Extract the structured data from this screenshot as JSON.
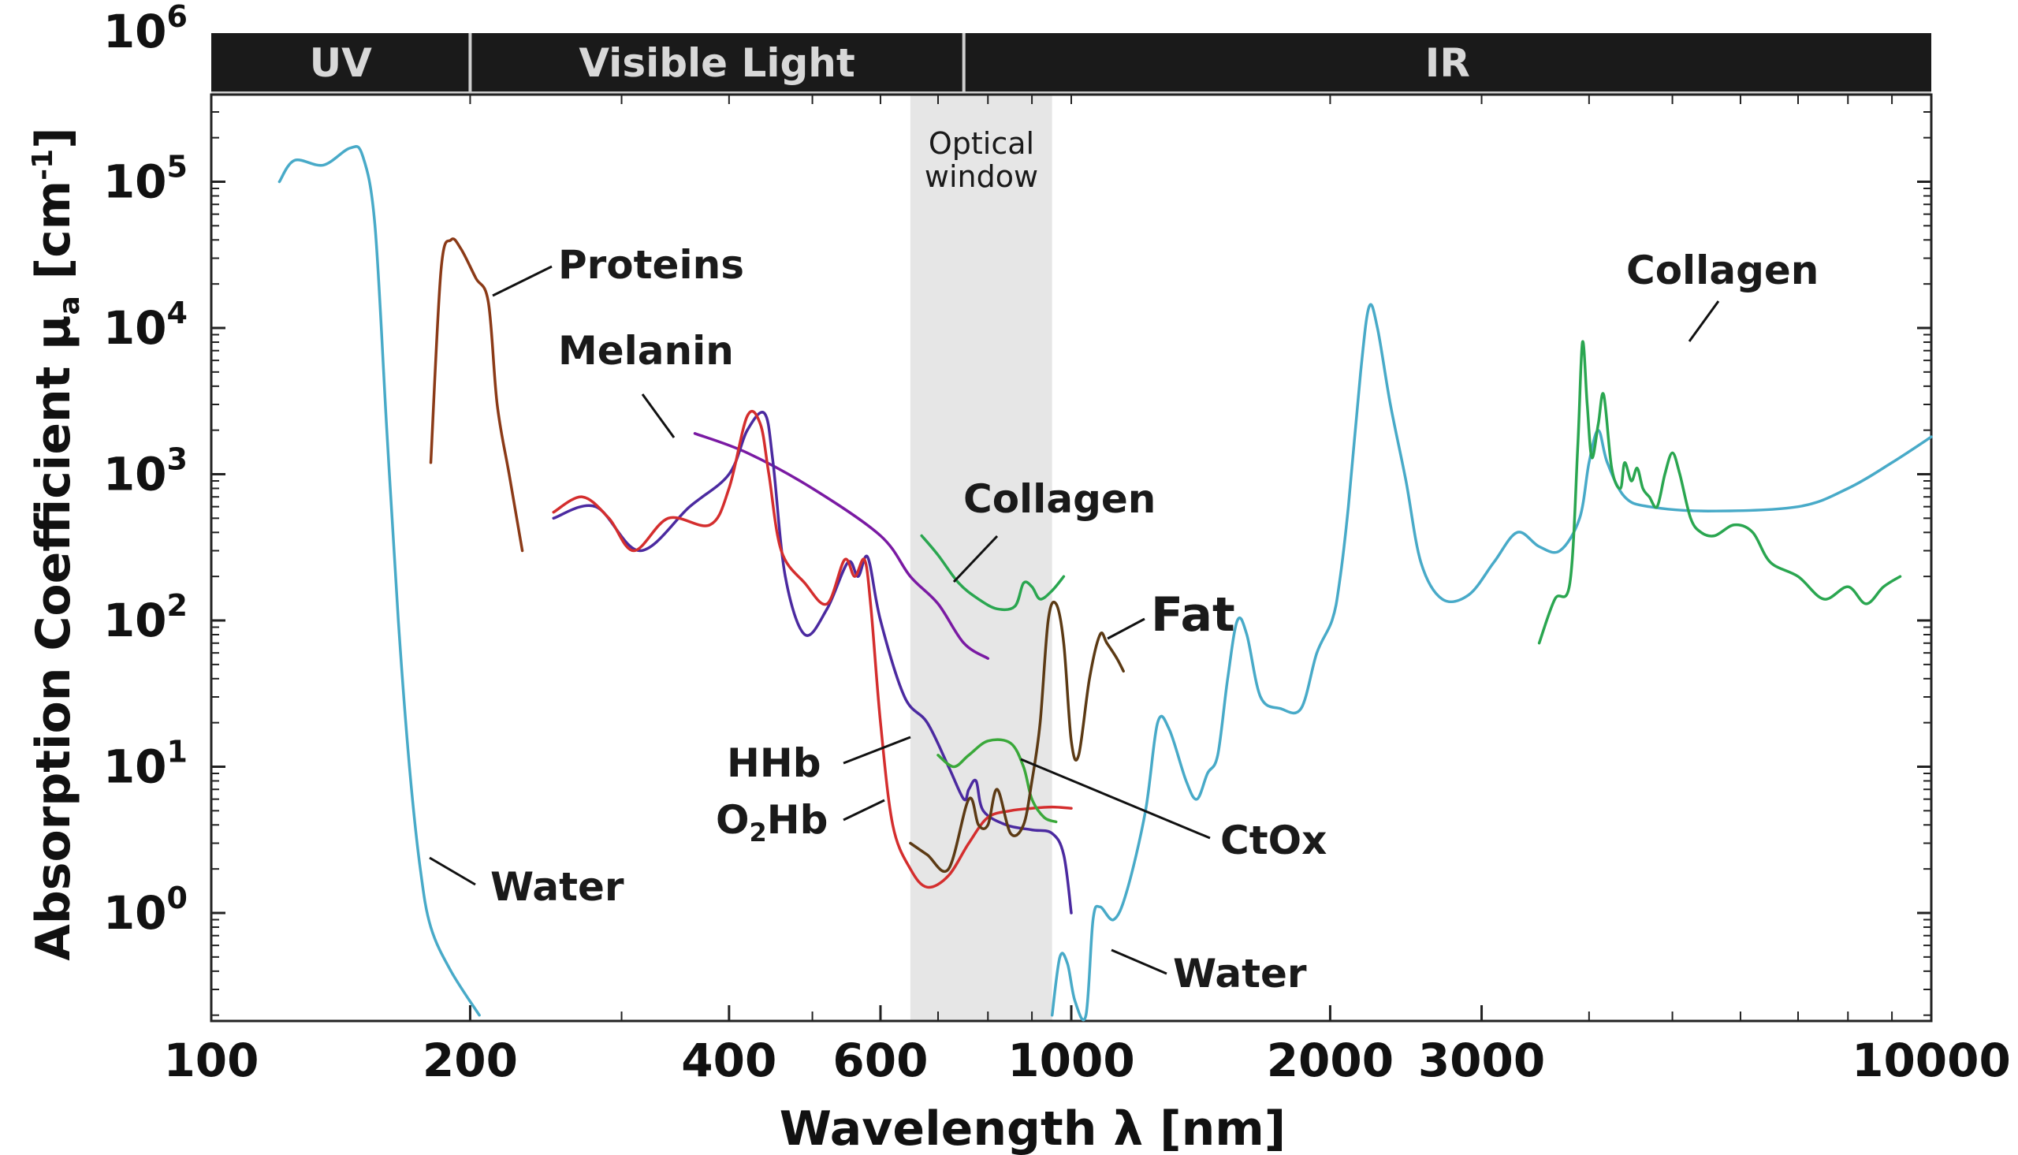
{
  "chart_data": {
    "type": "line",
    "title": "",
    "xlabel": "Wavelength λ [nm]",
    "ylabel": "Absorption Coefficient μa [cm-1]",
    "ylabel_main": "Absorption Coefficient μ",
    "ylabel_sub": "a",
    "ylabel_unit": " [cm",
    "ylabel_sup": "-1",
    "ylabel_close": "]",
    "xscale": "log",
    "yscale": "log",
    "xlim": [
      100,
      10000
    ],
    "ylim": [
      0.2,
      1000000
    ],
    "x_ticks": [
      {
        "value": 100,
        "label": "100"
      },
      {
        "value": 200,
        "label": "200"
      },
      {
        "value": 400,
        "label": "400"
      },
      {
        "value": 600,
        "label": "600"
      },
      {
        "value": 1000,
        "label": "1000"
      },
      {
        "value": 2000,
        "label": "2000"
      },
      {
        "value": 3000,
        "label": "3000"
      },
      {
        "value": 10000,
        "label": "10000"
      }
    ],
    "y_ticks": [
      {
        "value": 1,
        "base": "10",
        "exp": "0"
      },
      {
        "value": 10,
        "base": "10",
        "exp": "1"
      },
      {
        "value": 100,
        "base": "10",
        "exp": "2"
      },
      {
        "value": 1000,
        "base": "10",
        "exp": "3"
      },
      {
        "value": 10000,
        "base": "10",
        "exp": "4"
      },
      {
        "value": 100000,
        "base": "10",
        "exp": "5"
      },
      {
        "value": 1000000,
        "base": "10",
        "exp": "6"
      }
    ],
    "bands": [
      {
        "label": "UV",
        "from": 100,
        "to": 200
      },
      {
        "label": "Visible Light",
        "from": 200,
        "to": 750
      },
      {
        "label": "IR",
        "from": 750,
        "to": 10000
      }
    ],
    "optical_window": {
      "label_line1": "Optical",
      "label_line2": "window",
      "from": 650,
      "to": 950
    },
    "series": [
      {
        "name": "Water (UV)",
        "color": "#48aac8",
        "points": [
          [
            120,
            100000
          ],
          [
            125,
            140000
          ],
          [
            135,
            130000
          ],
          [
            145,
            170000
          ],
          [
            150,
            150000
          ],
          [
            155,
            50000
          ],
          [
            160,
            2000
          ],
          [
            165,
            100
          ],
          [
            170,
            10
          ],
          [
            175,
            2
          ],
          [
            180,
            0.8
          ],
          [
            190,
            0.4
          ],
          [
            205,
            0.2
          ]
        ]
      },
      {
        "name": "Water (IR)",
        "color": "#48aac8",
        "points": [
          [
            950,
            0.2
          ],
          [
            970,
            0.5
          ],
          [
            990,
            0.45
          ],
          [
            1010,
            0.25
          ],
          [
            1040,
            0.2
          ],
          [
            1060,
            0.9
          ],
          [
            1080,
            1.1
          ],
          [
            1120,
            0.9
          ],
          [
            1160,
            1.4
          ],
          [
            1220,
            5
          ],
          [
            1260,
            20
          ],
          [
            1300,
            18
          ],
          [
            1360,
            8
          ],
          [
            1400,
            6
          ],
          [
            1440,
            9
          ],
          [
            1480,
            12
          ],
          [
            1520,
            40
          ],
          [
            1560,
            100
          ],
          [
            1600,
            80
          ],
          [
            1660,
            30
          ],
          [
            1750,
            25
          ],
          [
            1850,
            25
          ],
          [
            1930,
            60
          ],
          [
            2010,
            100
          ],
          [
            2050,
            180
          ],
          [
            2100,
            600
          ],
          [
            2170,
            5000
          ],
          [
            2220,
            14000
          ],
          [
            2270,
            10000
          ],
          [
            2350,
            3000
          ],
          [
            2450,
            900
          ],
          [
            2550,
            250
          ],
          [
            2700,
            140
          ],
          [
            2900,
            150
          ],
          [
            3100,
            250
          ],
          [
            3300,
            400
          ],
          [
            3500,
            320
          ],
          [
            3700,
            300
          ],
          [
            3900,
            500
          ],
          [
            4000,
            1200
          ],
          [
            4100,
            2000
          ],
          [
            4200,
            1200
          ],
          [
            4400,
            700
          ],
          [
            4700,
            600
          ],
          [
            5500,
            560
          ],
          [
            7000,
            600
          ],
          [
            8000,
            800
          ],
          [
            9000,
            1200
          ],
          [
            10000,
            1800
          ]
        ]
      },
      {
        "name": "Proteins",
        "color": "#8b3a17",
        "points": [
          [
            180,
            1200
          ],
          [
            185,
            25000
          ],
          [
            190,
            40000
          ],
          [
            195,
            35000
          ],
          [
            203,
            22000
          ],
          [
            210,
            15000
          ],
          [
            215,
            3000
          ],
          [
            222,
            1000
          ],
          [
            230,
            300
          ]
        ]
      },
      {
        "name": "Melanin",
        "color": "#7a1aa3",
        "points": [
          [
            365,
            1900
          ],
          [
            420,
            1400
          ],
          [
            500,
            800
          ],
          [
            600,
            380
          ],
          [
            650,
            200
          ],
          [
            700,
            130
          ],
          [
            750,
            70
          ],
          [
            800,
            55
          ]
        ]
      },
      {
        "name": "HHb",
        "color": "#4b2aa0",
        "points": [
          [
            250,
            500
          ],
          [
            280,
            600
          ],
          [
            315,
            300
          ],
          [
            360,
            600
          ],
          [
            400,
            1000
          ],
          [
            420,
            2000
          ],
          [
            440,
            2600
          ],
          [
            450,
            1200
          ],
          [
            465,
            200
          ],
          [
            490,
            80
          ],
          [
            520,
            120
          ],
          [
            550,
            250
          ],
          [
            565,
            200
          ],
          [
            580,
            270
          ],
          [
            600,
            100
          ],
          [
            640,
            30
          ],
          [
            680,
            20
          ],
          [
            720,
            10
          ],
          [
            750,
            6
          ],
          [
            760,
            7
          ],
          [
            775,
            8
          ],
          [
            790,
            5
          ],
          [
            840,
            4
          ],
          [
            900,
            3.7
          ],
          [
            950,
            3.5
          ],
          [
            980,
            2.5
          ],
          [
            1000,
            1
          ]
        ]
      },
      {
        "name": "O2Hb",
        "color": "#d42e2e",
        "points": [
          [
            250,
            550
          ],
          [
            270,
            700
          ],
          [
            290,
            500
          ],
          [
            310,
            300
          ],
          [
            340,
            500
          ],
          [
            380,
            450
          ],
          [
            400,
            800
          ],
          [
            420,
            2500
          ],
          [
            435,
            2200
          ],
          [
            445,
            1000
          ],
          [
            460,
            300
          ],
          [
            490,
            180
          ],
          [
            520,
            130
          ],
          [
            545,
            260
          ],
          [
            560,
            200
          ],
          [
            575,
            260
          ],
          [
            585,
            120
          ],
          [
            600,
            20
          ],
          [
            620,
            4
          ],
          [
            650,
            2
          ],
          [
            680,
            1.5
          ],
          [
            720,
            1.8
          ],
          [
            760,
            3
          ],
          [
            800,
            4.5
          ],
          [
            850,
            5
          ],
          [
            900,
            5.2
          ],
          [
            950,
            5.3
          ],
          [
            1000,
            5.2
          ]
        ]
      },
      {
        "name": "Collagen (vis)",
        "color": "#2aa650",
        "points": [
          [
            670,
            380
          ],
          [
            700,
            280
          ],
          [
            740,
            180
          ],
          [
            780,
            140
          ],
          [
            820,
            120
          ],
          [
            860,
            125
          ],
          [
            880,
            180
          ],
          [
            900,
            170
          ],
          [
            920,
            140
          ],
          [
            950,
            160
          ],
          [
            980,
            200
          ]
        ]
      },
      {
        "name": "CtOx",
        "color": "#3aa83a",
        "points": [
          [
            700,
            12
          ],
          [
            730,
            10
          ],
          [
            760,
            12
          ],
          [
            800,
            15
          ],
          [
            850,
            14.5
          ],
          [
            880,
            10
          ],
          [
            900,
            6
          ],
          [
            930,
            4.5
          ],
          [
            960,
            4.2
          ]
        ]
      },
      {
        "name": "Fat",
        "color": "#5c3a14",
        "points": [
          [
            650,
            3
          ],
          [
            680,
            2.5
          ],
          [
            720,
            2
          ],
          [
            760,
            6
          ],
          [
            780,
            4
          ],
          [
            800,
            4
          ],
          [
            820,
            7
          ],
          [
            850,
            3.5
          ],
          [
            880,
            4
          ],
          [
            900,
            8
          ],
          [
            920,
            20
          ],
          [
            940,
            100
          ],
          [
            960,
            130
          ],
          [
            980,
            70
          ],
          [
            1000,
            15
          ],
          [
            1020,
            12
          ],
          [
            1050,
            40
          ],
          [
            1080,
            80
          ],
          [
            1100,
            70
          ],
          [
            1130,
            55
          ],
          [
            1150,
            45
          ]
        ]
      },
      {
        "name": "Collagen (IR)",
        "color": "#2aa650",
        "points": [
          [
            3500,
            70
          ],
          [
            3650,
            140
          ],
          [
            3800,
            180
          ],
          [
            3880,
            1500
          ],
          [
            3930,
            8000
          ],
          [
            3980,
            3000
          ],
          [
            4030,
            1300
          ],
          [
            4100,
            2200
          ],
          [
            4160,
            3500
          ],
          [
            4250,
            1100
          ],
          [
            4350,
            800
          ],
          [
            4400,
            1200
          ],
          [
            4480,
            900
          ],
          [
            4550,
            1100
          ],
          [
            4620,
            800
          ],
          [
            4700,
            700
          ],
          [
            4800,
            600
          ],
          [
            4900,
            1000
          ],
          [
            5000,
            1400
          ],
          [
            5100,
            1000
          ],
          [
            5250,
            500
          ],
          [
            5400,
            400
          ],
          [
            5600,
            380
          ],
          [
            5900,
            450
          ],
          [
            6200,
            400
          ],
          [
            6500,
            250
          ],
          [
            7000,
            200
          ],
          [
            7500,
            140
          ],
          [
            8000,
            170
          ],
          [
            8400,
            130
          ],
          [
            8800,
            170
          ],
          [
            9200,
            200
          ]
        ]
      }
    ],
    "annotations": [
      {
        "text": "Proteins"
      },
      {
        "text": "Melanin"
      },
      {
        "text": "Collagen"
      },
      {
        "text": "Fat"
      },
      {
        "text": "HHb"
      },
      {
        "text_main": "O",
        "text_sub": "2",
        "text_tail": "Hb"
      },
      {
        "text": "CtOx"
      },
      {
        "text": "Water"
      },
      {
        "text": "Water"
      },
      {
        "text": "Collagen"
      }
    ]
  }
}
